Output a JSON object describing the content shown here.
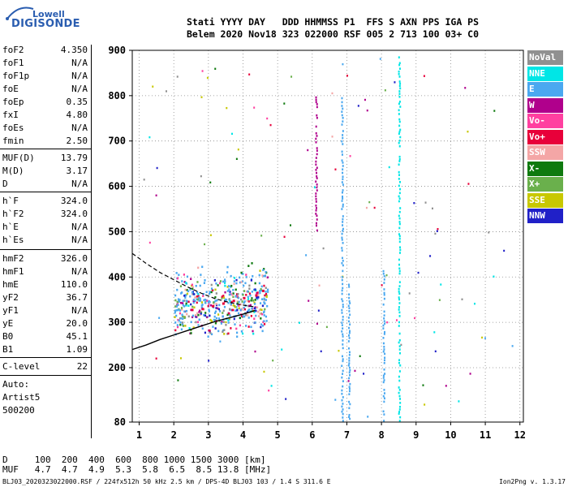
{
  "logo": {
    "top": "Lowell",
    "bottom": "DIGISONDE"
  },
  "header": {
    "line1": "Stati YYYY DAY   DDD HHMMSS P1  FFS S AXN PPS IGA PS",
    "line2": "Belem 2020 Nov18 323 022000 RSF 005 2 713 100 03+ C0"
  },
  "params": [
    {
      "name": "foF2",
      "value": "4.350"
    },
    {
      "name": "foF1",
      "value": "N/A"
    },
    {
      "name": "foF1p",
      "value": "N/A"
    },
    {
      "name": "foE",
      "value": "N/A"
    },
    {
      "name": "foEp",
      "value": "0.35"
    },
    {
      "name": "fxI",
      "value": "4.80"
    },
    {
      "name": "foEs",
      "value": "N/A"
    },
    {
      "name": "fmin",
      "value": "2.50"
    },
    {
      "name": "MUF(D)",
      "value": "13.79"
    },
    {
      "name": "M(D)",
      "value": "3.17"
    },
    {
      "name": "D",
      "value": "N/A"
    },
    {
      "name": "h`F",
      "value": "324.0"
    },
    {
      "name": "h`F2",
      "value": "324.0"
    },
    {
      "name": "h`E",
      "value": "N/A"
    },
    {
      "name": "h`Es",
      "value": "N/A"
    },
    {
      "name": "hmF2",
      "value": "326.0"
    },
    {
      "name": "hmF1",
      "value": "N/A"
    },
    {
      "name": "hmE",
      "value": "110.0"
    },
    {
      "name": "yF2",
      "value": "36.7"
    },
    {
      "name": "yF1",
      "value": "N/A"
    },
    {
      "name": "yE",
      "value": "20.0"
    },
    {
      "name": "B0",
      "value": "45.1"
    },
    {
      "name": "B1",
      "value": "1.09"
    },
    {
      "name": "C-level",
      "value": "22"
    }
  ],
  "auto_lines": [
    "Auto:",
    "Artist5",
    "500200"
  ],
  "legend": [
    {
      "label": "NoVal",
      "color": "#909090"
    },
    {
      "label": "NNE",
      "color": "#00e6e6"
    },
    {
      "label": "E",
      "color": "#4aa8f0"
    },
    {
      "label": "W",
      "color": "#b0008c"
    },
    {
      "label": "Vo-",
      "color": "#ff40a0"
    },
    {
      "label": "Vo+",
      "color": "#e8003a"
    },
    {
      "label": "SSW",
      "color": "#f4a6a6"
    },
    {
      "label": "X-",
      "color": "#0f7a0f"
    },
    {
      "label": "X+",
      "color": "#6ab04c"
    },
    {
      "label": "SSE",
      "color": "#c8c800"
    },
    {
      "label": "NNW",
      "color": "#2020c8"
    }
  ],
  "footer": {
    "d_line": "D     100  200  400  600  800 1000 1500 3000 [km]",
    "muf_line": "MUF   4.7  4.7  4.9  5.3  5.8  6.5  8.5 13.8 [MHz]",
    "file_line": "BLJ03_2020323022000.RSF / 224fx512h 50 kHz 2.5 km / DPS-4D BLJ03 103 / 1.4 S 311.6 E",
    "version": "Ion2Png v. 1.3.17"
  },
  "chart_data": {
    "type": "scatter",
    "xlim": [
      0.8,
      12.1
    ],
    "ylim": [
      80,
      900
    ],
    "x_ticks": [
      1,
      2,
      3,
      4,
      5,
      6,
      7,
      8,
      9,
      10,
      11,
      12
    ],
    "y_ticks": [
      80,
      200,
      300,
      400,
      500,
      600,
      700,
      800,
      900
    ],
    "grid": true,
    "profile_dashed": [
      [
        0.8,
        452
      ],
      [
        1.2,
        430
      ],
      [
        1.6,
        410
      ],
      [
        2.0,
        394
      ],
      [
        2.4,
        378
      ],
      [
        2.8,
        364
      ],
      [
        3.2,
        352
      ],
      [
        3.6,
        344
      ],
      [
        4.0,
        338
      ],
      [
        4.35,
        334
      ]
    ],
    "profile_solid": [
      [
        0.8,
        240
      ],
      [
        1.2,
        250
      ],
      [
        1.6,
        262
      ],
      [
        2.0,
        272
      ],
      [
        2.4,
        282
      ],
      [
        2.8,
        292
      ],
      [
        3.2,
        302
      ],
      [
        3.6,
        310
      ],
      [
        4.0,
        318
      ],
      [
        4.35,
        326
      ]
    ],
    "trace_rise": [
      [
        2.5,
        330
      ],
      [
        2.8,
        332
      ],
      [
        3.1,
        338
      ],
      [
        3.4,
        344
      ],
      [
        3.7,
        350
      ],
      [
        4.0,
        356
      ],
      [
        4.35,
        362
      ],
      [
        4.55,
        372
      ]
    ],
    "columns": [
      {
        "x": 6.1,
        "ymin": 505,
        "ymax": 800,
        "color": "#b0008c"
      },
      {
        "x": 6.85,
        "ymin": 85,
        "ymax": 800,
        "color": "#4aa8f0"
      },
      {
        "x": 7.05,
        "ymin": 85,
        "ymax": 400,
        "color": "#4aa8f0"
      },
      {
        "x": 8.05,
        "ymin": 85,
        "ymax": 420,
        "color": "#4aa8f0"
      },
      {
        "x": 8.5,
        "ymin": 85,
        "ymax": 900,
        "color": "#00e6e6"
      }
    ],
    "cluster": {
      "xmin": 2.0,
      "xmax": 4.7,
      "ymin": 270,
      "ymax": 450
    }
  }
}
